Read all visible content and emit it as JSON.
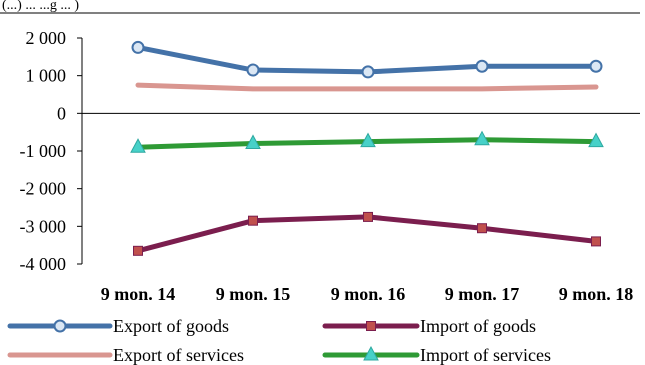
{
  "header_fragment": "(...) ... ...g ... )",
  "chart_data": {
    "type": "line",
    "categories": [
      "9 mon. 14",
      "9 mon. 15",
      "9 mon. 16",
      "9 mon. 17",
      "9 mon. 18"
    ],
    "y_tick_labels": [
      "2 000",
      "1 000",
      "0",
      "-1 000",
      "-2 000",
      "-3 000",
      "-4 000"
    ],
    "ylim": [
      -4000,
      2000
    ],
    "y_ticks": [
      2000,
      1000,
      0,
      -1000,
      -2000,
      -3000,
      -4000
    ],
    "grid": false,
    "legend_position": "bottom",
    "series": [
      {
        "name": "Export of goods",
        "color": "#4472a8",
        "marker": "circle",
        "values": [
          1750,
          1150,
          1100,
          1250,
          1250
        ]
      },
      {
        "name": "Import of goods",
        "color": "#7b1e4e",
        "marker": "square",
        "values": [
          -3650,
          -2850,
          -2750,
          -3050,
          -3400
        ]
      },
      {
        "name": "Export of services",
        "color": "#d99690",
        "marker": "none",
        "values": [
          750,
          650,
          650,
          650,
          700
        ]
      },
      {
        "name": "Import of services",
        "color": "#2e9a35",
        "marker": "triangle",
        "values": [
          -900,
          -800,
          -750,
          -700,
          -750
        ]
      }
    ]
  }
}
